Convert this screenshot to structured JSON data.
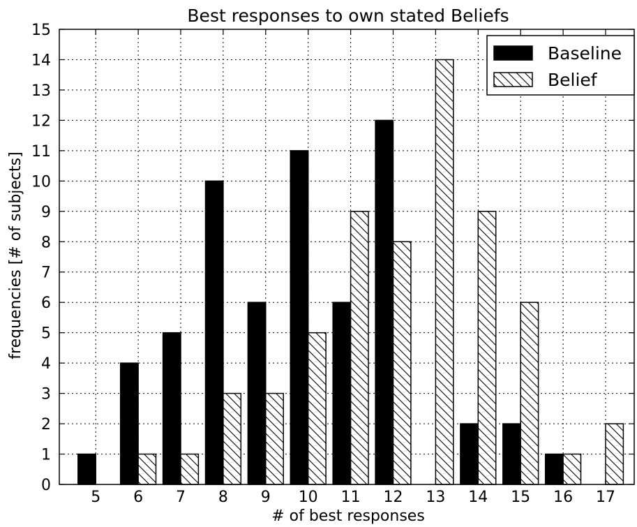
{
  "chart_data": {
    "type": "bar",
    "title": "Best responses to own stated Beliefs",
    "xlabel": "# of best responses",
    "ylabel": "frequencies [# of subjects]",
    "categories": [
      "5",
      "6",
      "7",
      "8",
      "9",
      "10",
      "11",
      "12",
      "13",
      "14",
      "15",
      "16",
      "17"
    ],
    "series": [
      {
        "name": "Baseline",
        "values": [
          1,
          4,
          5,
          10,
          6,
          11,
          6,
          12,
          0,
          2,
          2,
          1,
          0
        ],
        "fill": "#000000",
        "pattern": "solid"
      },
      {
        "name": "Belief",
        "values": [
          0,
          1,
          1,
          3,
          3,
          5,
          9,
          8,
          14,
          9,
          6,
          1,
          2
        ],
        "fill": "#ffffff",
        "pattern": "diagonal-hatch"
      }
    ],
    "ylim": [
      0,
      15
    ],
    "yticks": [
      "0",
      "1",
      "2",
      "3",
      "4",
      "5",
      "6",
      "7",
      "8",
      "9",
      "10",
      "11",
      "12",
      "13",
      "14",
      "15"
    ],
    "grid": true,
    "legend_position": "top-right"
  }
}
